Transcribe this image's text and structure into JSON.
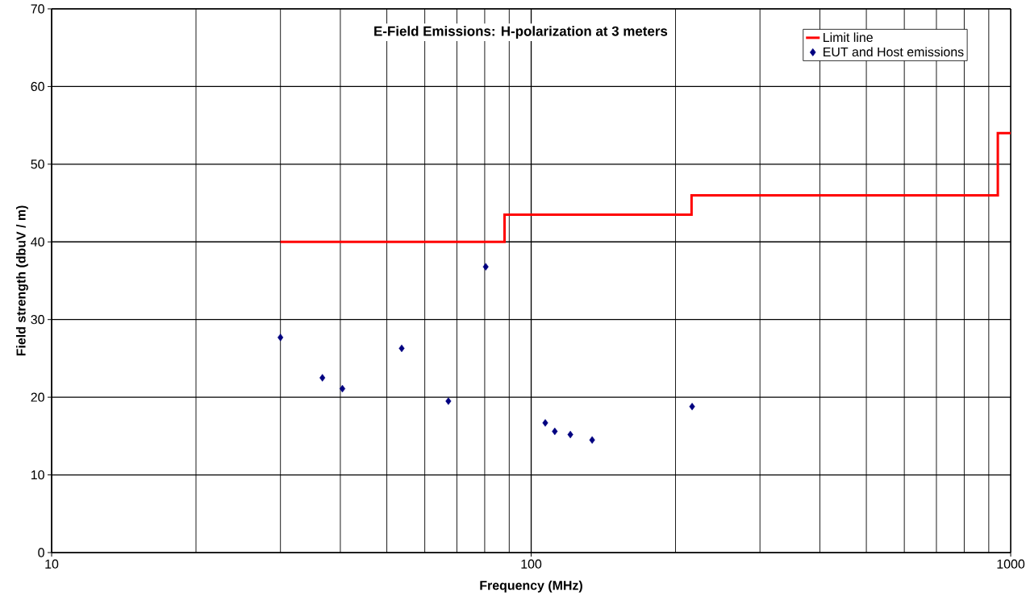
{
  "chart_data": {
    "type": "scatter",
    "title": "E-Field Emissions: H-polarization at 3 meters",
    "xlabel": "Frequency (MHz)",
    "ylabel": "Field strength (dbuV / m)",
    "log": "x",
    "xlim": [
      10,
      1000
    ],
    "xticks": [
      10,
      100,
      1000
    ],
    "ylim": [
      0,
      70
    ],
    "yticks": [
      0,
      10,
      20,
      30,
      40,
      50,
      60,
      70
    ],
    "grid": true,
    "legend": "top right",
    "series": [
      {
        "name": "Limit line",
        "type": "step",
        "color": "#ff0000",
        "marker": "none",
        "x": [
          30,
          88,
          216,
          940,
          1000
        ],
        "values": [
          40,
          43.5,
          46,
          54,
          54
        ]
      },
      {
        "name": "EUT and Host emissions",
        "color": "#000080",
        "marker": "diamond",
        "x": [
          30,
          36.7,
          40.4,
          53.7,
          67.2,
          80.4,
          107,
          112,
          120.7,
          134,
          216.6
        ],
        "values": [
          27.7,
          22.5,
          21.1,
          26.3,
          19.5,
          36.8,
          16.7,
          15.6,
          15.2,
          14.5,
          18.8
        ]
      }
    ]
  }
}
